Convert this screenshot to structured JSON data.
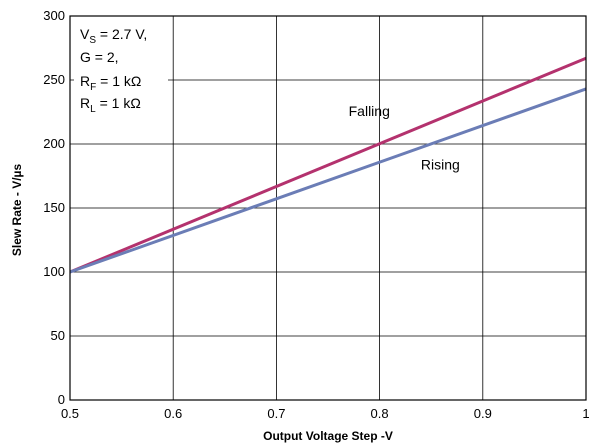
{
  "chart_data": {
    "type": "line",
    "title": "",
    "xlabel": "Output Voltage Step  -V",
    "ylabel": "Slew Rate - V/µs",
    "xlim": [
      0.5,
      1.0
    ],
    "ylim": [
      0,
      300
    ],
    "xticks": [
      {
        "value": 0.5,
        "label": "0.5"
      },
      {
        "value": 0.6,
        "label": "0.6"
      },
      {
        "value": 0.7,
        "label": "0.7"
      },
      {
        "value": 0.8,
        "label": "0.8"
      },
      {
        "value": 0.9,
        "label": "0.9"
      },
      {
        "value": 1.0,
        "label": "1"
      }
    ],
    "yticks": [
      {
        "value": 0,
        "label": "0"
      },
      {
        "value": 50,
        "label": "50"
      },
      {
        "value": 100,
        "label": "100"
      },
      {
        "value": 150,
        "label": "150"
      },
      {
        "value": 200,
        "label": "200"
      },
      {
        "value": 250,
        "label": "250"
      },
      {
        "value": 300,
        "label": "300"
      }
    ],
    "grid": true,
    "legend": "none",
    "series": [
      {
        "name": "Falling",
        "color": "#b4326e",
        "x": [
          0.5,
          1.0
        ],
        "y": [
          100,
          267
        ]
      },
      {
        "name": "Rising",
        "color": "#6b7db6",
        "x": [
          0.5,
          1.0
        ],
        "y": [
          100,
          243
        ]
      }
    ],
    "annotations": {
      "conditions": [
        {
          "main": "V",
          "sub": "S",
          "rest": " = 2.7 V,"
        },
        {
          "main": "G = 2,",
          "sub": "",
          "rest": ""
        },
        {
          "main": "R",
          "sub": "F",
          "rest": " = 1 kΩ"
        },
        {
          "main": "R",
          "sub": "L",
          "rest": " = 1 kΩ"
        }
      ],
      "series_labels": [
        {
          "text": "Falling",
          "x": 0.77,
          "y": 222
        },
        {
          "text": "Rising",
          "x": 0.84,
          "y": 180
        }
      ]
    }
  }
}
